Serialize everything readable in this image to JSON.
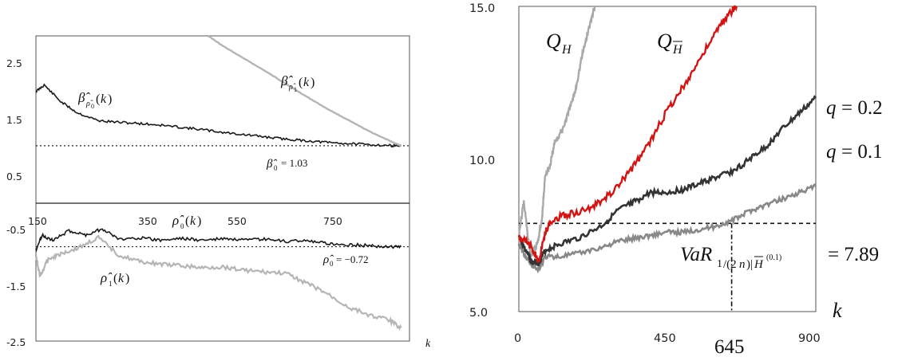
{
  "chart_data": [
    {
      "type": "line",
      "panel": "top-left",
      "ylim": [
        0,
        3
      ],
      "xlim": [
        0,
        900
      ],
      "y_ticks": [
        "2.5",
        "1.5",
        "0.5"
      ],
      "y_tick_values": [
        2.5,
        1.5,
        0.5
      ],
      "grid": false,
      "series": [
        {
          "name": "β̂ρ̂0(k)",
          "color": "#1a1a1a",
          "x": [
            0,
            20,
            60,
            100,
            150,
            200,
            250,
            300,
            350,
            400,
            450,
            500,
            550,
            600,
            650,
            700,
            750,
            800,
            850,
            880
          ],
          "y": [
            2.0,
            2.12,
            1.82,
            1.62,
            1.48,
            1.45,
            1.43,
            1.4,
            1.36,
            1.32,
            1.27,
            1.23,
            1.19,
            1.15,
            1.12,
            1.09,
            1.07,
            1.05,
            1.035,
            1.03
          ]
        },
        {
          "name": "β̂ρ̂1(k)",
          "color": "#b5b5b5",
          "x": [
            415,
            450,
            500,
            550,
            600,
            650,
            700,
            750,
            800,
            840,
            870,
            880
          ],
          "y": [
            3.0,
            2.82,
            2.6,
            2.38,
            2.15,
            1.92,
            1.7,
            1.5,
            1.3,
            1.16,
            1.06,
            1.03
          ]
        }
      ],
      "reference_line": {
        "label": "β̂0 = 1.03",
        "value": 1.03
      }
    },
    {
      "type": "line",
      "panel": "bottom-left",
      "ylim": [
        -2.5,
        0.1
      ],
      "xlim": [
        0,
        900
      ],
      "y_ticks": [
        "-0.5",
        "-1.5",
        "-2.5"
      ],
      "y_tick_values": [
        -0.5,
        -1.5,
        -2.5
      ],
      "x_ticks": [
        "150",
        "350",
        "550",
        "750"
      ],
      "x_tick_values": [
        150,
        350,
        550,
        750
      ],
      "xlabel": "k",
      "grid": false,
      "series": [
        {
          "name": "ρ̂0(k)",
          "color": "#1a1a1a",
          "x": [
            0,
            15,
            40,
            80,
            120,
            160,
            200,
            250,
            300,
            350,
            400,
            450,
            500,
            550,
            600,
            650,
            700,
            750,
            800,
            850,
            880
          ],
          "y": [
            -0.78,
            -0.5,
            -0.6,
            -0.42,
            -0.5,
            -0.38,
            -0.58,
            -0.55,
            -0.6,
            -0.56,
            -0.6,
            -0.57,
            -0.6,
            -0.58,
            -0.62,
            -0.6,
            -0.66,
            -0.68,
            -0.7,
            -0.72,
            -0.72
          ]
        },
        {
          "name": "ρ̂1(k)",
          "color": "#b5b5b5",
          "x": [
            0,
            10,
            30,
            60,
            100,
            150,
            200,
            250,
            300,
            350,
            400,
            450,
            500,
            550,
            600,
            650,
            700,
            750,
            800,
            850,
            880
          ],
          "y": [
            -0.9,
            -1.28,
            -0.95,
            -0.85,
            -0.75,
            -0.55,
            -0.88,
            -1.0,
            -1.05,
            -1.08,
            -1.12,
            -1.1,
            -1.16,
            -1.2,
            -1.22,
            -1.4,
            -1.6,
            -1.85,
            -2.0,
            -2.1,
            -2.25
          ]
        }
      ],
      "reference_line": {
        "label": "ρ̂0 = −0.72",
        "value": -0.72
      }
    },
    {
      "type": "line",
      "panel": "right",
      "ylim": [
        5,
        15
      ],
      "xlim": [
        0,
        900
      ],
      "y_ticks": [
        "15.0",
        "10.0",
        "5.0"
      ],
      "y_tick_values": [
        15,
        10,
        5
      ],
      "x_ticks": [
        "0",
        "450",
        "900"
      ],
      "x_tick_values": [
        0,
        450,
        900
      ],
      "x_marker": "645",
      "xlabel": "k",
      "grid": false,
      "series": [
        {
          "name": "QH",
          "color": "#a8a8a8",
          "x": [
            0,
            15,
            35,
            55,
            70,
            80,
            95,
            110,
            130,
            150,
            170,
            190,
            210,
            230
          ],
          "y": [
            7.5,
            8.6,
            6.8,
            7.2,
            8.0,
            9.5,
            9.8,
            10.6,
            10.9,
            11.5,
            12.2,
            13.3,
            14.2,
            15.0
          ]
        },
        {
          "name": "QH̄",
          "color": "#d11414",
          "x": [
            0,
            20,
            40,
            60,
            80,
            100,
            150,
            200,
            250,
            300,
            350,
            400,
            450,
            500,
            550,
            600,
            640,
            660
          ],
          "y": [
            7.4,
            7.3,
            7.1,
            6.6,
            7.6,
            8.0,
            8.2,
            8.3,
            8.6,
            9.1,
            9.8,
            10.6,
            11.6,
            12.4,
            13.3,
            14.2,
            14.8,
            15.0
          ]
        },
        {
          "name": "q = 0.2",
          "color": "#333333",
          "x": [
            0,
            20,
            40,
            60,
            80,
            120,
            180,
            250,
            300,
            350,
            400,
            450,
            500,
            550,
            600,
            650,
            700,
            750,
            800,
            850,
            900
          ],
          "y": [
            7.5,
            7.0,
            6.6,
            6.6,
            7.0,
            7.2,
            7.4,
            7.8,
            8.3,
            8.6,
            8.9,
            8.9,
            9.0,
            9.2,
            9.4,
            9.6,
            10.0,
            10.4,
            11.0,
            11.5,
            12.0
          ]
        },
        {
          "name": "q = 0.1",
          "color": "#888888",
          "x": [
            0,
            20,
            40,
            60,
            80,
            120,
            180,
            250,
            300,
            350,
            400,
            450,
            500,
            550,
            600,
            650,
            700,
            750,
            800,
            850,
            900
          ],
          "y": [
            7.2,
            6.8,
            6.5,
            6.4,
            6.8,
            6.8,
            6.9,
            7.1,
            7.3,
            7.4,
            7.5,
            7.6,
            7.6,
            7.7,
            7.8,
            8.0,
            8.3,
            8.5,
            8.7,
            8.9,
            9.1
          ]
        }
      ],
      "reference_line": {
        "value": 7.89,
        "x": 645
      }
    }
  ]
}
